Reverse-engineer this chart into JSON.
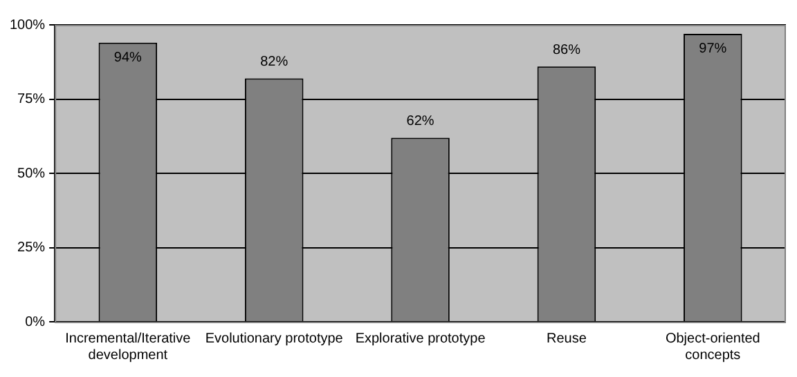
{
  "chart_data": {
    "type": "bar",
    "categories": [
      "Incremental/Iterative development",
      "Evolutionary prototype",
      "Explorative prototype",
      "Reuse",
      "Object-oriented concepts"
    ],
    "values": [
      94,
      82,
      62,
      86,
      97
    ],
    "value_labels": [
      "94%",
      "82%",
      "62%",
      "86%",
      "97%"
    ],
    "color": "#808080",
    "ylim": [
      0,
      100
    ],
    "yticks": [
      {
        "value": 0,
        "label": "0%"
      },
      {
        "value": 25,
        "label": "25%"
      },
      {
        "value": 50,
        "label": "50%"
      },
      {
        "value": 75,
        "label": "75%"
      },
      {
        "value": 100,
        "label": "100%"
      }
    ],
    "grid": "y",
    "legend": false
  }
}
